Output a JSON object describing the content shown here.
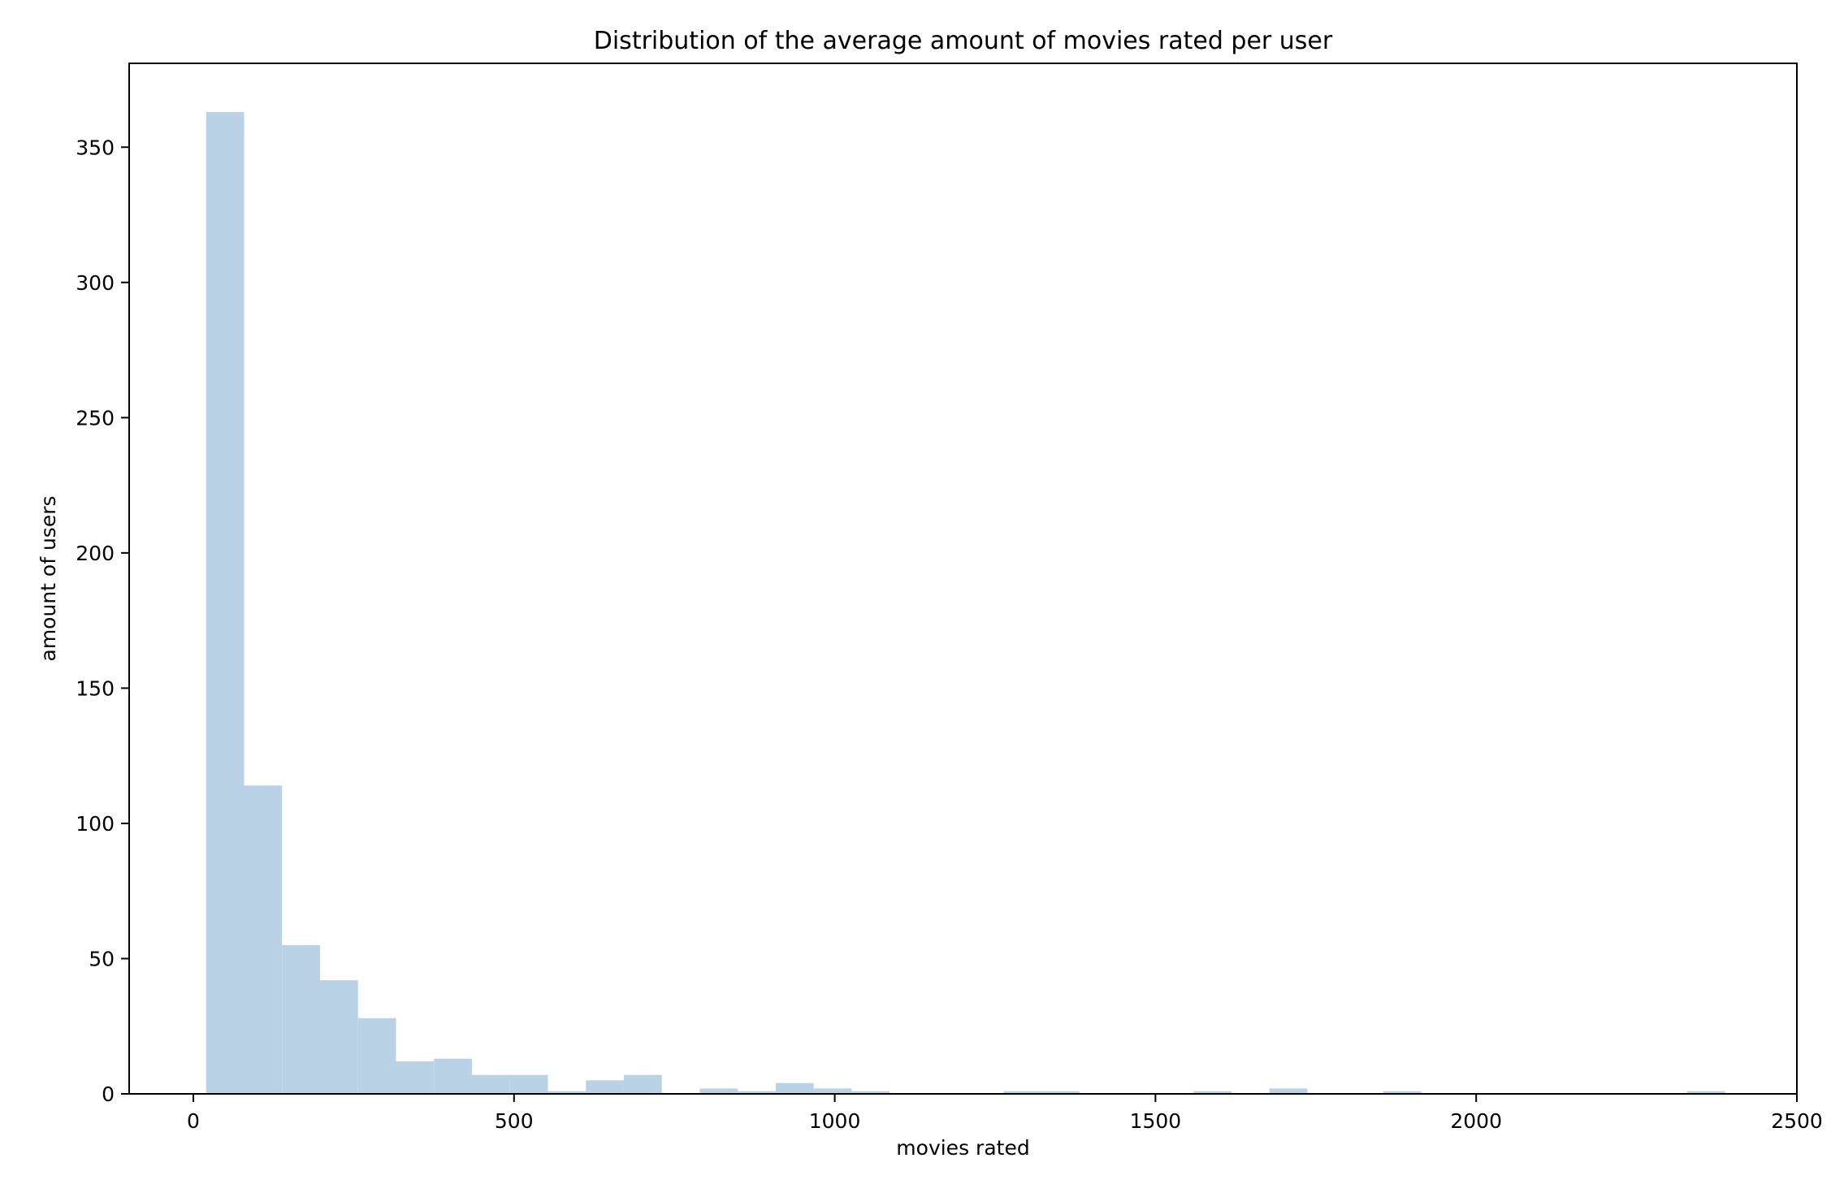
{
  "chart_data": {
    "type": "bar",
    "title": "Distribution of the average amount of movies rated per user",
    "xlabel": "movies rated",
    "ylabel": "amount of users",
    "xlim": [
      -100,
      2500
    ],
    "ylim": [
      0,
      381
    ],
    "xticks": [
      0,
      500,
      1000,
      1500,
      2000,
      2500
    ],
    "yticks": [
      0,
      50,
      100,
      150,
      200,
      250,
      300,
      350
    ],
    "grid": false,
    "bar_color": "#BAD2E6",
    "bins": [
      {
        "x0": 20,
        "x1": 79.2,
        "count": 363
      },
      {
        "x0": 79.2,
        "x1": 138.4,
        "count": 114
      },
      {
        "x0": 138.4,
        "x1": 197.6,
        "count": 55
      },
      {
        "x0": 197.6,
        "x1": 256.8,
        "count": 42
      },
      {
        "x0": 256.8,
        "x1": 316,
        "count": 28
      },
      {
        "x0": 316,
        "x1": 375.2,
        "count": 12
      },
      {
        "x0": 375.2,
        "x1": 434.4,
        "count": 13
      },
      {
        "x0": 434.4,
        "x1": 493.6,
        "count": 7
      },
      {
        "x0": 493.6,
        "x1": 552.8,
        "count": 7
      },
      {
        "x0": 552.8,
        "x1": 612,
        "count": 1
      },
      {
        "x0": 612,
        "x1": 671.2,
        "count": 5
      },
      {
        "x0": 671.2,
        "x1": 730.4,
        "count": 7
      },
      {
        "x0": 789.6,
        "x1": 848.8,
        "count": 2
      },
      {
        "x0": 848.8,
        "x1": 908,
        "count": 1
      },
      {
        "x0": 908,
        "x1": 967.2,
        "count": 4
      },
      {
        "x0": 967.2,
        "x1": 1026.4,
        "count": 2
      },
      {
        "x0": 1026.4,
        "x1": 1085.6,
        "count": 1
      },
      {
        "x0": 1263.2,
        "x1": 1322.4,
        "count": 1
      },
      {
        "x0": 1322.4,
        "x1": 1381.6,
        "count": 1
      },
      {
        "x0": 1559.2,
        "x1": 1618.4,
        "count": 1
      },
      {
        "x0": 1677.6,
        "x1": 1736.8,
        "count": 2
      },
      {
        "x0": 1855.2,
        "x1": 1914.4,
        "count": 1
      },
      {
        "x0": 2328.8,
        "x1": 2388,
        "count": 1
      }
    ]
  }
}
